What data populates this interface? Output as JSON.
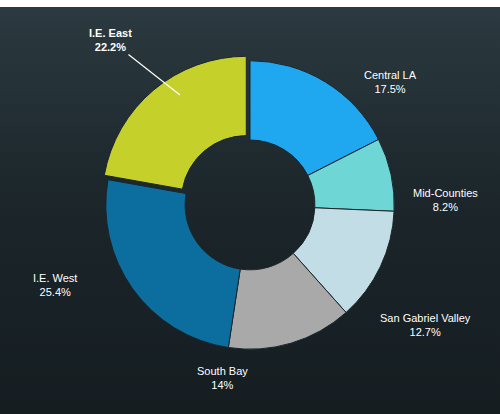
{
  "chart_data": {
    "type": "pie",
    "categories": [
      "Central LA",
      "Mid-Counties",
      "San Gabriel Valley",
      "South Bay",
      "I.E. West",
      "I.E. East"
    ],
    "values": [
      17.5,
      8.2,
      12.7,
      14,
      25.4,
      22.2
    ],
    "value_labels": [
      "17.5%",
      "8.2%",
      "12.7%",
      "14%",
      "25.4%",
      "22.2%"
    ],
    "colors": [
      "#1fa8f0",
      "#6fd6d6",
      "#c3dde6",
      "#a9a9a9",
      "#0b6e9e",
      "#c5d12a"
    ],
    "data_labels": true
  }
}
